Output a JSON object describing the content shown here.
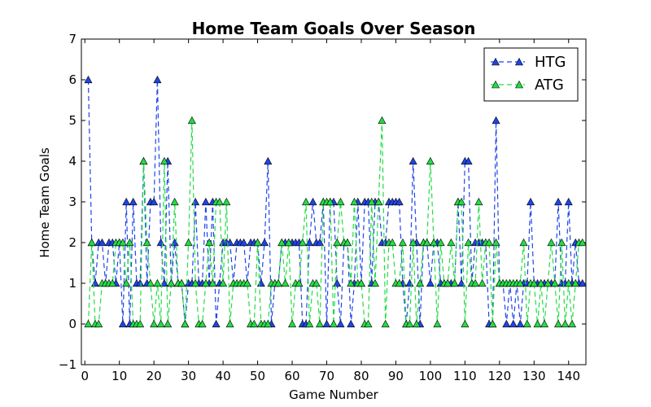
{
  "chart_data": {
    "type": "line",
    "title": "Home Team Goals Over Season",
    "xlabel": "Game Number",
    "ylabel": "Home Team Goals",
    "xlim": [
      -1,
      145
    ],
    "ylim": [
      -1,
      7
    ],
    "xticks": [
      0,
      10,
      20,
      30,
      40,
      50,
      60,
      70,
      80,
      90,
      100,
      110,
      120,
      130,
      140
    ],
    "yticks": [
      -1,
      0,
      1,
      2,
      3,
      4,
      5,
      6,
      7
    ],
    "legend_position": "top-right",
    "grid": false,
    "series": [
      {
        "name": "HTG",
        "color": "#1f45e8",
        "marker": "triangle",
        "linestyle": "dashed",
        "x": [
          1,
          2,
          3,
          4,
          5,
          6,
          7,
          8,
          9,
          10,
          11,
          12,
          13,
          14,
          15,
          16,
          17,
          18,
          19,
          20,
          21,
          22,
          23,
          24,
          25,
          26,
          27,
          28,
          29,
          30,
          31,
          32,
          33,
          34,
          35,
          36,
          37,
          38,
          39,
          40,
          41,
          42,
          43,
          44,
          45,
          46,
          47,
          48,
          49,
          50,
          51,
          52,
          53,
          54,
          55,
          56,
          57,
          58,
          59,
          60,
          61,
          62,
          63,
          64,
          65,
          66,
          67,
          68,
          69,
          70,
          71,
          72,
          73,
          74,
          75,
          76,
          77,
          78,
          79,
          80,
          81,
          82,
          83,
          84,
          85,
          86,
          87,
          88,
          89,
          90,
          91,
          92,
          93,
          94,
          95,
          96,
          97,
          98,
          99,
          100,
          101,
          102,
          103,
          104,
          105,
          106,
          107,
          108,
          109,
          110,
          111,
          112,
          113,
          114,
          115,
          116,
          117,
          118,
          119,
          120,
          121,
          122,
          123,
          124,
          125,
          126,
          127,
          128,
          129,
          130,
          131,
          132,
          133,
          134,
          135,
          136,
          137,
          138,
          139,
          140,
          141,
          142,
          143,
          144
        ],
        "values": [
          6,
          2,
          1,
          2,
          2,
          1,
          2,
          2,
          1,
          2,
          0,
          3,
          0,
          3,
          1,
          1,
          4,
          1,
          3,
          3,
          6,
          2,
          1,
          4,
          1,
          2,
          1,
          1,
          0,
          1,
          1,
          3,
          1,
          1,
          3,
          1,
          3,
          0,
          1,
          2,
          2,
          2,
          1,
          2,
          2,
          2,
          1,
          2,
          2,
          2,
          1,
          2,
          4,
          0,
          1,
          1,
          2,
          2,
          2,
          2,
          2,
          2,
          0,
          0,
          2,
          3,
          2,
          2,
          3,
          0,
          3,
          3,
          1,
          0,
          2,
          2,
          0,
          1,
          3,
          1,
          3,
          3,
          1,
          3,
          3,
          2,
          2,
          3,
          3,
          3,
          3,
          1,
          0,
          1,
          4,
          2,
          0,
          2,
          2,
          1,
          2,
          2,
          1,
          1,
          1,
          1,
          1,
          3,
          1,
          4,
          4,
          1,
          2,
          2,
          2,
          2,
          0,
          0,
          5,
          1,
          1,
          0,
          1,
          0,
          1,
          0,
          1,
          1,
          3,
          1,
          1,
          1,
          1,
          1,
          1,
          1,
          3,
          1,
          1,
          3,
          1,
          2,
          1,
          1
        ]
      },
      {
        "name": "ATG",
        "color": "#22dd44",
        "marker": "triangle",
        "linestyle": "dashed",
        "x": [
          1,
          2,
          3,
          4,
          5,
          6,
          7,
          8,
          9,
          10,
          11,
          12,
          13,
          14,
          15,
          16,
          17,
          18,
          19,
          20,
          21,
          22,
          23,
          24,
          25,
          26,
          27,
          28,
          29,
          30,
          31,
          32,
          33,
          34,
          35,
          36,
          37,
          38,
          39,
          40,
          41,
          42,
          43,
          44,
          45,
          46,
          47,
          48,
          49,
          50,
          51,
          52,
          53,
          54,
          55,
          56,
          57,
          58,
          59,
          60,
          61,
          62,
          63,
          64,
          65,
          66,
          67,
          68,
          69,
          70,
          71,
          72,
          73,
          74,
          75,
          76,
          77,
          78,
          79,
          80,
          81,
          82,
          83,
          84,
          85,
          86,
          87,
          88,
          89,
          90,
          91,
          92,
          93,
          94,
          95,
          96,
          97,
          98,
          99,
          100,
          101,
          102,
          103,
          104,
          105,
          106,
          107,
          108,
          109,
          110,
          111,
          112,
          113,
          114,
          115,
          116,
          117,
          118,
          119,
          120,
          121,
          122,
          123,
          124,
          125,
          126,
          127,
          128,
          129,
          130,
          131,
          132,
          133,
          134,
          135,
          136,
          137,
          138,
          139,
          140,
          141,
          142,
          143,
          144
        ],
        "values": [
          0,
          2,
          0,
          0,
          1,
          1,
          1,
          1,
          2,
          2,
          2,
          1,
          2,
          0,
          0,
          0,
          4,
          2,
          1,
          0,
          1,
          0,
          4,
          0,
          1,
          3,
          1,
          1,
          0,
          2,
          5,
          1,
          0,
          0,
          1,
          2,
          1,
          3,
          3,
          1,
          3,
          0,
          1,
          1,
          1,
          1,
          1,
          0,
          0,
          2,
          0,
          0,
          0,
          1,
          1,
          1,
          2,
          1,
          2,
          0,
          1,
          1,
          2,
          3,
          0,
          1,
          1,
          0,
          3,
          3,
          3,
          0,
          2,
          3,
          2,
          2,
          1,
          3,
          1,
          1,
          0,
          0,
          3,
          1,
          3,
          5,
          0,
          2,
          2,
          1,
          1,
          2,
          0,
          0,
          2,
          0,
          1,
          2,
          2,
          4,
          2,
          0,
          2,
          1,
          1,
          2,
          1,
          3,
          3,
          0,
          2,
          1,
          1,
          3,
          1,
          2,
          2,
          0,
          2,
          1,
          1,
          1,
          1,
          1,
          1,
          1,
          2,
          0,
          1,
          1,
          0,
          1,
          0,
          1,
          2,
          1,
          0,
          2,
          0,
          1,
          0,
          1,
          2,
          2
        ]
      }
    ]
  }
}
